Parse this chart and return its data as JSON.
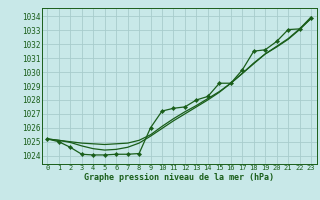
{
  "title": "Graphe pression niveau de la mer (hPa)",
  "bg_color": "#c8e8e8",
  "grid_color": "#a8cccc",
  "line_color": "#1a5e1a",
  "xlim": [
    -0.5,
    23.5
  ],
  "ylim": [
    1023.4,
    1034.6
  ],
  "yticks": [
    1024,
    1025,
    1026,
    1027,
    1028,
    1029,
    1030,
    1031,
    1032,
    1033,
    1034
  ],
  "xticks": [
    0,
    1,
    2,
    3,
    4,
    5,
    6,
    7,
    8,
    9,
    10,
    11,
    12,
    13,
    14,
    15,
    16,
    17,
    18,
    19,
    20,
    21,
    22,
    23
  ],
  "measured": [
    [
      0,
      1025.2
    ],
    [
      1,
      1025.0
    ],
    [
      2,
      1024.6
    ],
    [
      3,
      1024.1
    ],
    [
      4,
      1024.05
    ],
    [
      5,
      1024.05
    ],
    [
      6,
      1024.1
    ],
    [
      7,
      1024.1
    ],
    [
      8,
      1024.15
    ],
    [
      9,
      1026.0
    ],
    [
      10,
      1027.2
    ],
    [
      11,
      1027.4
    ],
    [
      12,
      1027.5
    ],
    [
      13,
      1028.0
    ],
    [
      14,
      1028.25
    ],
    [
      15,
      1029.2
    ],
    [
      16,
      1029.2
    ],
    [
      17,
      1030.15
    ],
    [
      18,
      1031.5
    ],
    [
      19,
      1031.6
    ],
    [
      20,
      1032.2
    ],
    [
      21,
      1033.05
    ],
    [
      22,
      1033.1
    ],
    [
      23,
      1033.85
    ]
  ],
  "smooth_linear": [
    [
      0,
      1025.2
    ],
    [
      1,
      1025.1
    ],
    [
      2,
      1025.0
    ],
    [
      3,
      1024.9
    ],
    [
      4,
      1024.85
    ],
    [
      5,
      1024.8
    ],
    [
      6,
      1024.85
    ],
    [
      7,
      1024.9
    ],
    [
      8,
      1025.1
    ],
    [
      9,
      1025.5
    ],
    [
      10,
      1026.1
    ],
    [
      11,
      1026.65
    ],
    [
      12,
      1027.15
    ],
    [
      13,
      1027.6
    ],
    [
      14,
      1028.1
    ],
    [
      15,
      1028.6
    ],
    [
      16,
      1029.2
    ],
    [
      17,
      1029.9
    ],
    [
      18,
      1030.6
    ],
    [
      19,
      1031.3
    ],
    [
      20,
      1031.8
    ],
    [
      21,
      1032.35
    ],
    [
      22,
      1033.05
    ],
    [
      23,
      1033.85
    ]
  ],
  "smooth_curved": [
    [
      0,
      1025.2
    ],
    [
      1,
      1025.1
    ],
    [
      2,
      1024.95
    ],
    [
      3,
      1024.7
    ],
    [
      4,
      1024.5
    ],
    [
      5,
      1024.4
    ],
    [
      6,
      1024.45
    ],
    [
      7,
      1024.6
    ],
    [
      8,
      1024.9
    ],
    [
      9,
      1025.4
    ],
    [
      10,
      1025.95
    ],
    [
      11,
      1026.5
    ],
    [
      12,
      1027.0
    ],
    [
      13,
      1027.5
    ],
    [
      14,
      1028.0
    ],
    [
      15,
      1028.55
    ],
    [
      16,
      1029.2
    ],
    [
      17,
      1029.9
    ],
    [
      18,
      1030.65
    ],
    [
      19,
      1031.3
    ],
    [
      20,
      1031.85
    ],
    [
      21,
      1032.4
    ],
    [
      22,
      1033.1
    ],
    [
      23,
      1033.95
    ]
  ]
}
